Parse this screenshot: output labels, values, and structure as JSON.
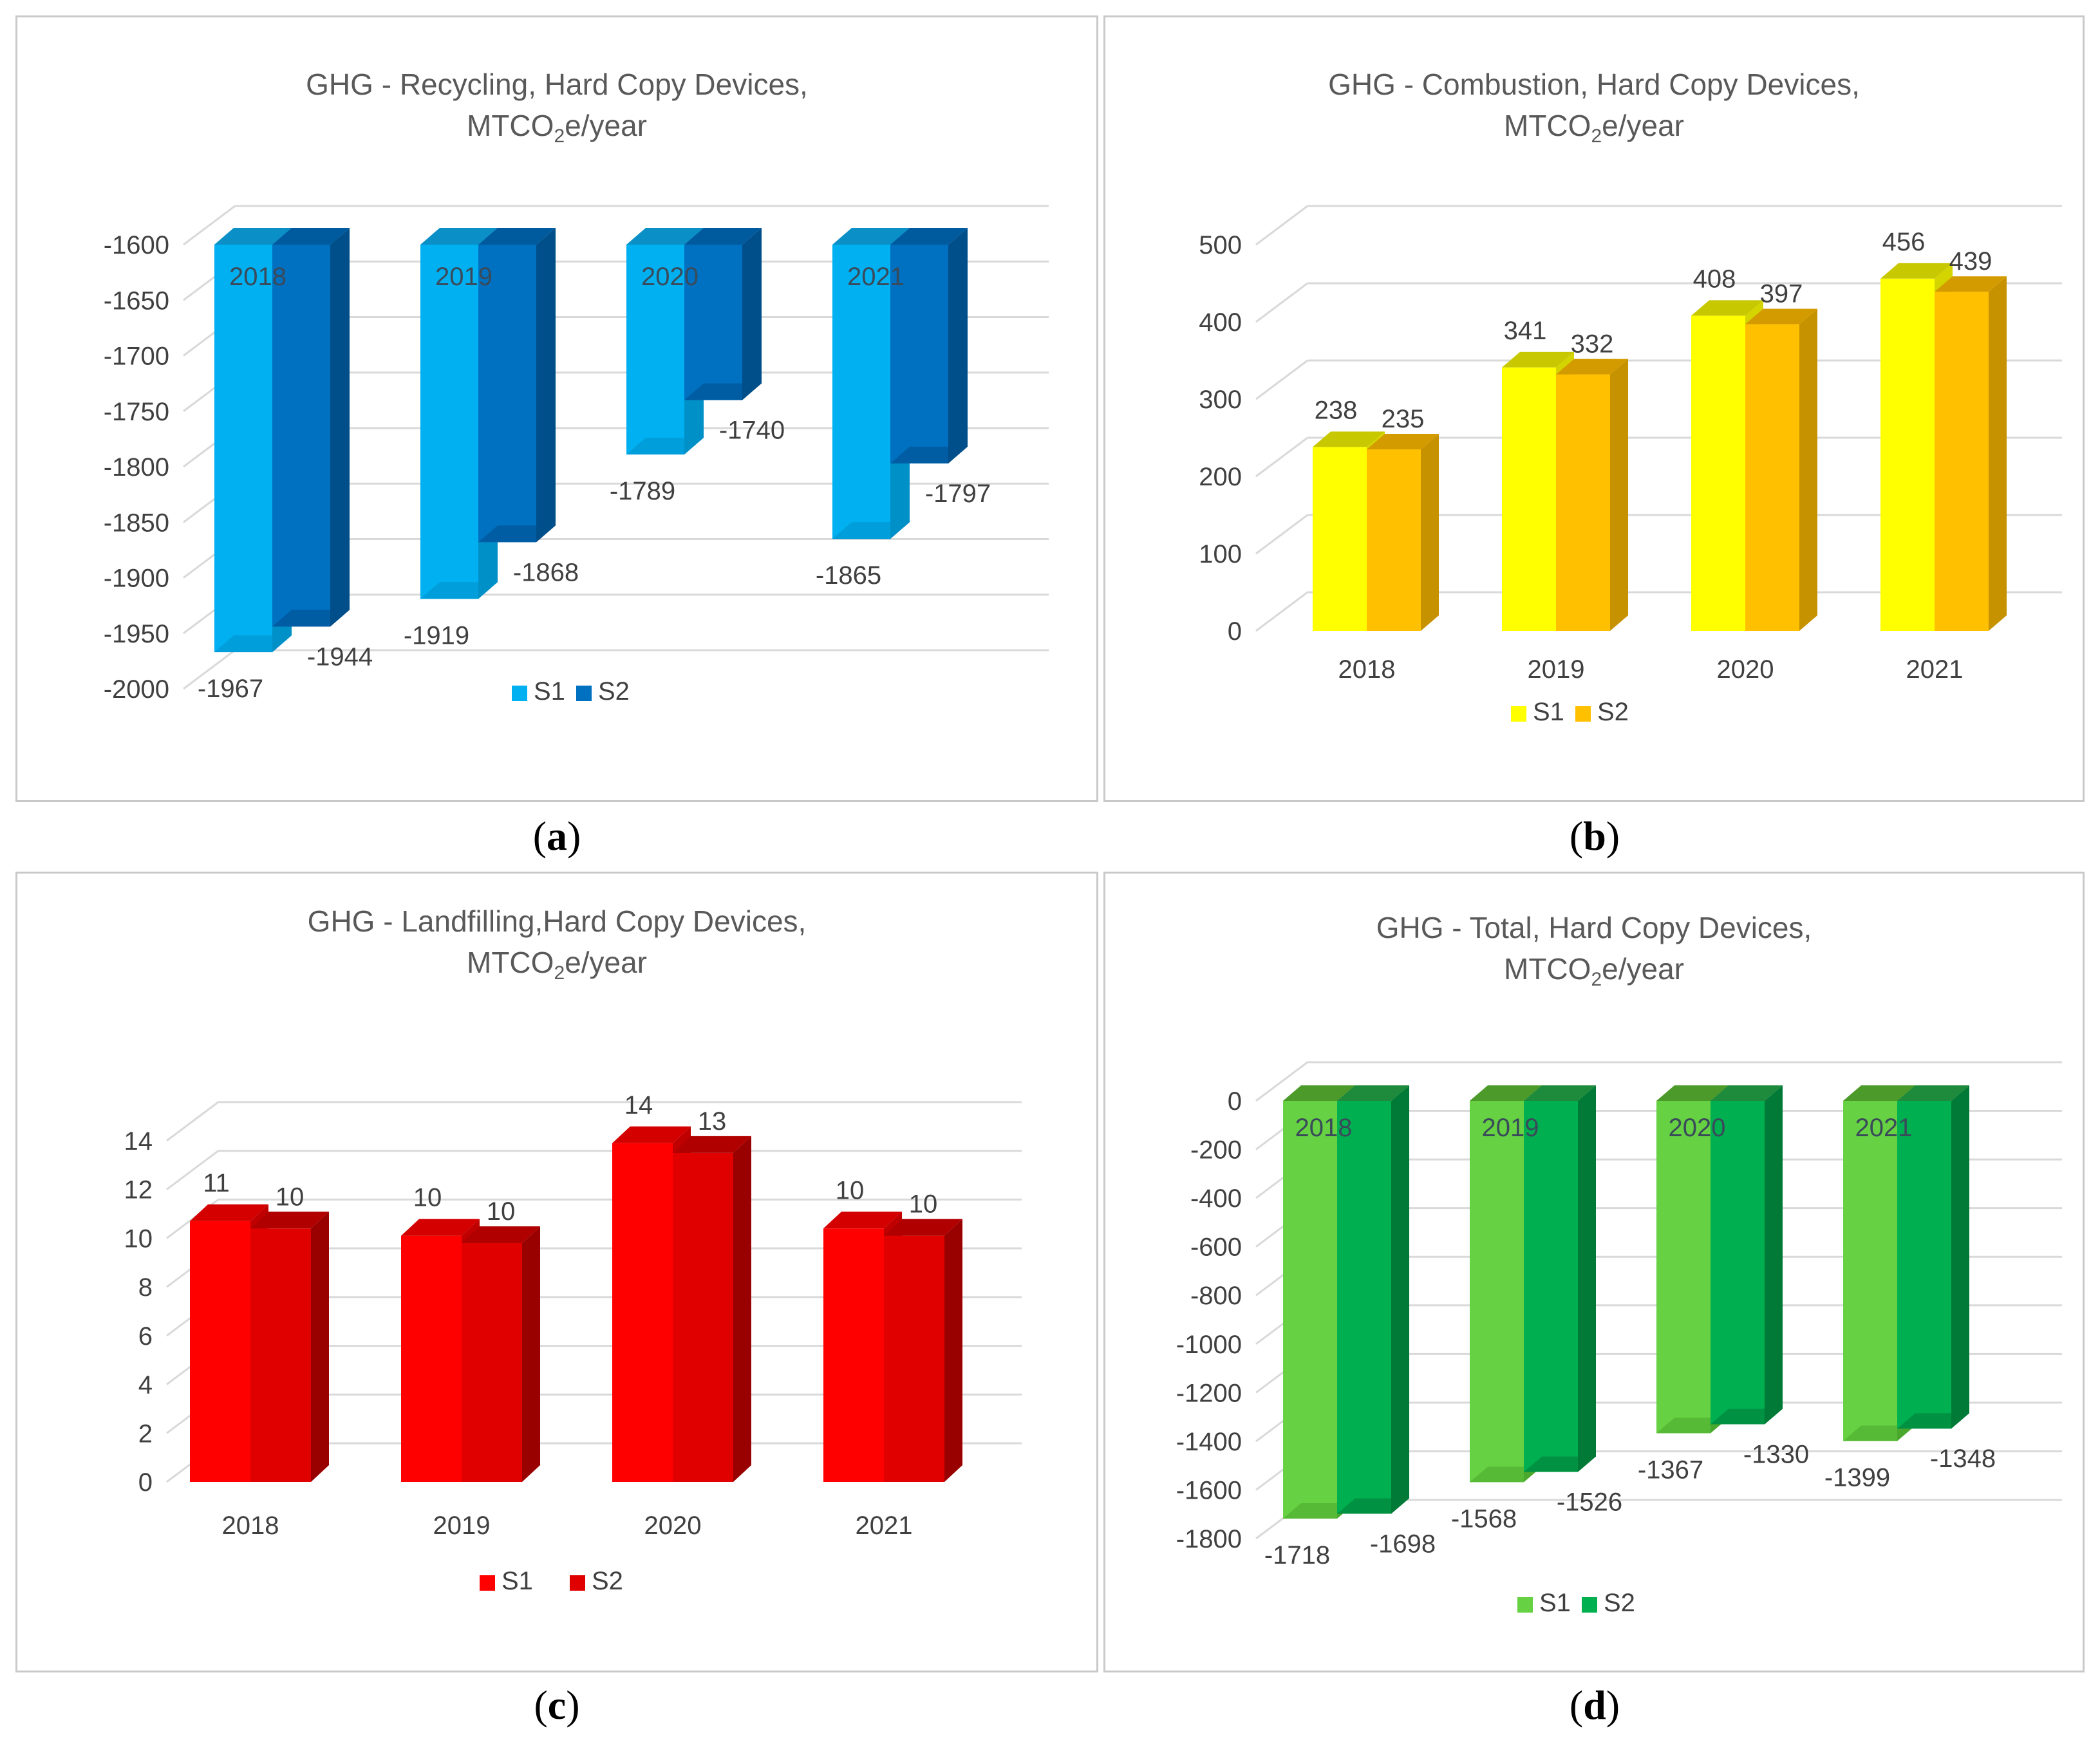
{
  "captions": [
    "a",
    "b",
    "c",
    "d"
  ],
  "chart_data": [
    {
      "type": "bar",
      "title": "GHG  - Recycling, Hard Copy Devices,",
      "title_unit": {
        "pre": "MTCO",
        "sub": "2",
        "post": "e/year"
      },
      "categories": [
        "2018",
        "2019",
        "2020",
        "2021"
      ],
      "series": [
        {
          "name": "S1",
          "values": [
            -1967,
            -1919,
            -1789,
            -1865
          ],
          "color": "#00b0f0",
          "side_color": "#0090c8",
          "top_color": "#0a8fc6"
        },
        {
          "name": "S2",
          "values": [
            -1944,
            -1868,
            -1740,
            -1797
          ],
          "color": "#0070c0",
          "side_color": "#004f8a",
          "top_color": "#005a9e"
        }
      ],
      "yticks": [
        -1600,
        -1650,
        -1700,
        -1750,
        -1800,
        -1850,
        -1900,
        -1950,
        -2000
      ],
      "ylim": [
        -2000,
        -1600
      ],
      "bars_from": "top",
      "category_labels_in_bars": true,
      "legend_position": "bottom"
    },
    {
      "type": "bar",
      "title": "GHG  - Combustion, Hard Copy Devices,",
      "title_unit": {
        "pre": "MTCO",
        "sub": "2",
        "post": "e/year"
      },
      "categories": [
        "2018",
        "2019",
        "2020",
        "2021"
      ],
      "series": [
        {
          "name": "S1",
          "values": [
            238,
            341,
            408,
            456
          ],
          "color": "#ffff00",
          "side_color": "#d4d400",
          "top_color": "#c8c800"
        },
        {
          "name": "S2",
          "values": [
            235,
            332,
            397,
            439
          ],
          "color": "#ffc000",
          "side_color": "#c79200",
          "top_color": "#d49b00"
        }
      ],
      "yticks": [
        0,
        100,
        200,
        300,
        400,
        500
      ],
      "ylim": [
        0,
        500
      ],
      "bars_from": "bottom",
      "category_labels_in_bars": false,
      "legend_position": "bottom"
    },
    {
      "type": "bar",
      "title": "GHG  - Landfilling,Hard Copy Devices,",
      "title_unit": {
        "pre": "MTCO",
        "sub": "2",
        "post": "e/year"
      },
      "categories": [
        "2018",
        "2019",
        "2020",
        "2021"
      ],
      "series": [
        {
          "name": "S1",
          "labels": [
            "11",
            "10",
            "14",
            "10"
          ],
          "values": [
            10.7,
            10.1,
            13.9,
            10.4
          ],
          "color": "#ff0000",
          "side_color": "#c00000",
          "top_color": "#d40000"
        },
        {
          "name": "S2",
          "labels": [
            "10",
            "10",
            "13",
            "10"
          ],
          "values": [
            10.4,
            9.8,
            13.5,
            10.1
          ],
          "color": "#e00000",
          "side_color": "#990000",
          "top_color": "#b00000"
        }
      ],
      "yticks": [
        0,
        2,
        4,
        6,
        8,
        10,
        12,
        14
      ],
      "ylim": [
        0,
        14
      ],
      "bars_from": "bottom",
      "category_labels_in_bars": false,
      "legend_position": "bottom"
    },
    {
      "type": "bar",
      "title": "GHG  - Total, Hard Copy Devices,",
      "title_unit": {
        "pre": "MTCO",
        "sub": "2",
        "post": "e/year"
      },
      "categories": [
        "2018",
        "2019",
        "2020",
        "2021"
      ],
      "series": [
        {
          "name": "S1",
          "values": [
            -1718,
            -1568,
            -1367,
            -1399
          ],
          "color": "#66d142",
          "side_color": "#4aa82e",
          "top_color": "#4c9a2a"
        },
        {
          "name": "S2",
          "values": [
            -1698,
            -1526,
            -1330,
            -1348
          ],
          "color": "#00b050",
          "side_color": "#007a36",
          "top_color": "#1e8a3c"
        }
      ],
      "yticks": [
        0,
        -200,
        -400,
        -600,
        -800,
        -1000,
        -1200,
        -1400,
        -1600,
        -1800
      ],
      "ylim": [
        -1800,
        0
      ],
      "bars_from": "top",
      "category_labels_in_bars": true,
      "legend_position": "bottom"
    }
  ]
}
